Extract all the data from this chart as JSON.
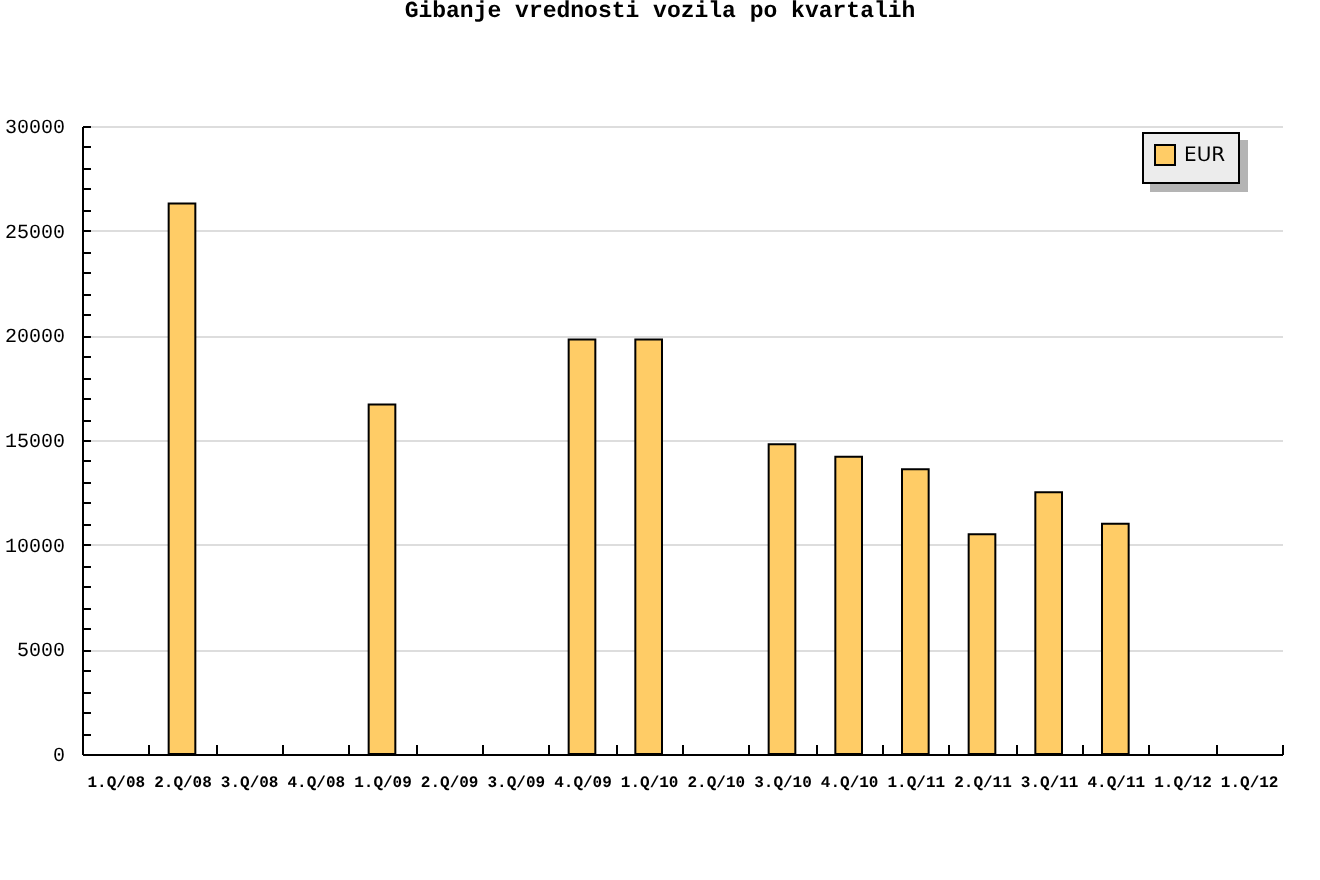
{
  "chart_data": {
    "type": "bar",
    "title": "Gibanje vrednosti vozila po kvartalih",
    "categories": [
      "1.Q/08",
      "2.Q/08",
      "3.Q/08",
      "4.Q/08",
      "1.Q/09",
      "2.Q/09",
      "3.Q/09",
      "4.Q/09",
      "1.Q/10",
      "2.Q/10",
      "3.Q/10",
      "4.Q/10",
      "1.Q/11",
      "2.Q/11",
      "3.Q/11",
      "4.Q/11",
      "1.Q/12",
      "1.Q/12"
    ],
    "series": [
      {
        "name": "EUR",
        "color": "#ffcc66",
        "values": [
          null,
          26300,
          null,
          null,
          16700,
          null,
          null,
          19800,
          19800,
          null,
          14800,
          14200,
          13600,
          10500,
          12500,
          11000,
          null,
          null
        ]
      }
    ],
    "ylim": [
      0,
      30000
    ],
    "yticks": [
      0,
      {
        "value": 1000,
        "label": null
      },
      {
        "value": 2000,
        "label": null
      },
      {
        "value": 3000,
        "label": null
      },
      {
        "value": 4000,
        "label": null
      },
      5000,
      {
        "value": 6000,
        "label": null
      },
      {
        "value": 7000,
        "label": null
      },
      {
        "value": 8000,
        "label": null
      },
      {
        "value": 9000,
        "label": null
      },
      10000,
      {
        "value": 11000,
        "label": null
      },
      {
        "value": 12000,
        "label": null
      },
      {
        "value": 13000,
        "label": null
      },
      {
        "value": 14000,
        "label": null
      },
      15000,
      {
        "value": 16000,
        "label": null
      },
      {
        "value": 17000,
        "label": null
      },
      {
        "value": 18000,
        "label": null
      },
      {
        "value": 19000,
        "label": null
      },
      20000,
      {
        "value": 21000,
        "label": null
      },
      {
        "value": 22000,
        "label": null
      },
      {
        "value": 23000,
        "label": null
      },
      {
        "value": 24000,
        "label": null
      },
      25000,
      {
        "value": 26000,
        "label": null
      },
      {
        "value": 27000,
        "label": null
      },
      {
        "value": 28000,
        "label": null
      },
      {
        "value": 29000,
        "label": null
      },
      30000
    ],
    "grid": "y",
    "legend": "top right"
  }
}
